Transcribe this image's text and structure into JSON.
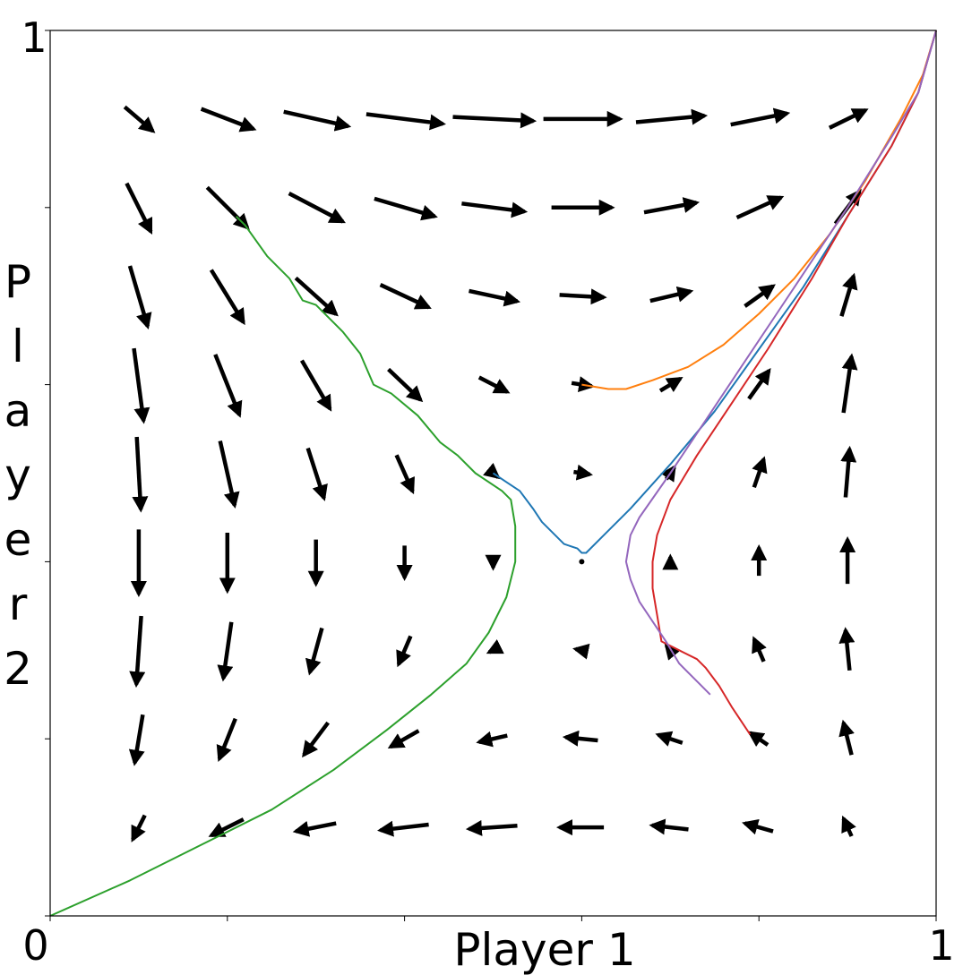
{
  "chart_data": {
    "type": "quiver",
    "title": "",
    "xlabel": "Player 1",
    "ylabel": "Player 2",
    "xlim": [
      0,
      1
    ],
    "ylim": [
      0,
      1
    ],
    "x_tick_labels": [
      "0",
      "1"
    ],
    "y_tick_labels": [
      "1"
    ],
    "x_ticks": [
      0,
      0.2,
      0.4,
      0.6,
      0.8,
      1
    ],
    "y_ticks": [
      0,
      0.2,
      0.4,
      0.6,
      0.8,
      1
    ],
    "grid": false,
    "legend": "none",
    "equilibrium_point": [
      0.6,
      0.4
    ],
    "vector_field": {
      "grid_values": [
        0.1,
        0.2,
        0.3,
        0.4,
        0.5,
        0.6,
        0.7,
        0.8,
        0.9
      ],
      "vectors_note": "direction (dx, dy) per grid point; rows listed top (y=0.9) to bottom (y=0.1), columns left (x=0.1) to right (x=0.9)",
      "rows": [
        {
          "y": 0.9,
          "d": [
            [
              0.035,
              -0.03
            ],
            [
              0.065,
              -0.025
            ],
            [
              0.08,
              -0.018
            ],
            [
              0.095,
              -0.012
            ],
            [
              0.1,
              -0.005
            ],
            [
              0.095,
              0
            ],
            [
              0.085,
              0.008
            ],
            [
              0.07,
              0.014
            ],
            [
              0.045,
              0.022
            ]
          ]
        },
        {
          "y": 0.8,
          "d": [
            [
              0.03,
              -0.06
            ],
            [
              0.05,
              -0.05
            ],
            [
              0.067,
              -0.035
            ],
            [
              0.075,
              -0.022
            ],
            [
              0.078,
              -0.01
            ],
            [
              0.075,
              0
            ],
            [
              0.065,
              0.012
            ],
            [
              0.055,
              0.025
            ],
            [
              0.03,
              0.04
            ]
          ]
        },
        {
          "y": 0.7,
          "d": [
            [
              0.022,
              -0.075
            ],
            [
              0.04,
              -0.065
            ],
            [
              0.05,
              -0.045
            ],
            [
              0.06,
              -0.028
            ],
            [
              0.06,
              -0.013
            ],
            [
              0.055,
              -0.003
            ],
            [
              0.05,
              0.012
            ],
            [
              0.035,
              0.025
            ],
            [
              0.015,
              0.05
            ]
          ]
        },
        {
          "y": 0.6,
          "d": [
            [
              0.012,
              -0.09
            ],
            [
              0.03,
              -0.075
            ],
            [
              0.035,
              -0.06
            ],
            [
              0.04,
              -0.038
            ],
            [
              0.035,
              -0.018
            ],
            [
              0.025,
              -0.004
            ],
            [
              0.025,
              0.015
            ],
            [
              0.025,
              0.035
            ],
            [
              0.01,
              0.07
            ]
          ]
        },
        {
          "y": 0.5,
          "d": [
            [
              0.005,
              -0.09
            ],
            [
              0.018,
              -0.08
            ],
            [
              0.02,
              -0.062
            ],
            [
              0.02,
              -0.045
            ],
            [
              0.012,
              -0.01
            ],
            [
              0.02,
              -0.003
            ],
            [
              0.01,
              0.015
            ],
            [
              0.012,
              0.035
            ],
            [
              0.005,
              0.06
            ]
          ]
        },
        {
          "y": 0.4,
          "d": [
            [
              0,
              -0.08
            ],
            [
              0,
              -0.072
            ],
            [
              0,
              -0.055
            ],
            [
              0,
              -0.04
            ],
            [
              0,
              -0.015
            ],
            [
              0,
              0
            ],
            [
              0,
              0.012
            ],
            [
              0,
              0.035
            ],
            [
              0,
              0.055
            ]
          ]
        },
        {
          "y": 0.3,
          "d": [
            [
              -0.006,
              -0.085
            ],
            [
              -0.01,
              -0.07
            ],
            [
              -0.015,
              -0.055
            ],
            [
              -0.015,
              -0.035
            ],
            [
              -0.01,
              -0.005
            ],
            [
              -0.015,
              0.003
            ],
            [
              -0.01,
              0.012
            ],
            [
              -0.012,
              0.028
            ],
            [
              -0.005,
              0.05
            ]
          ]
        },
        {
          "y": 0.2,
          "d": [
            [
              -0.01,
              -0.06
            ],
            [
              -0.02,
              -0.05
            ],
            [
              -0.03,
              -0.04
            ],
            [
              -0.035,
              -0.02
            ],
            [
              -0.035,
              -0.008
            ],
            [
              -0.04,
              0.004
            ],
            [
              -0.03,
              0.01
            ],
            [
              -0.022,
              0.015
            ],
            [
              -0.01,
              0.04
            ]
          ]
        },
        {
          "y": 0.1,
          "d": [
            [
              -0.015,
              -0.03
            ],
            [
              -0.04,
              -0.02
            ],
            [
              -0.05,
              -0.01
            ],
            [
              -0.06,
              -0.007
            ],
            [
              -0.06,
              -0.004
            ],
            [
              -0.055,
              0
            ],
            [
              -0.045,
              0.005
            ],
            [
              -0.035,
              0.01
            ],
            [
              -0.01,
              0.022
            ]
          ]
        }
      ]
    },
    "series": [
      {
        "color": "#2ca02c",
        "points": [
          [
            0.21,
            0.79
          ],
          [
            0.22,
            0.78
          ],
          [
            0.245,
            0.745
          ],
          [
            0.27,
            0.72
          ],
          [
            0.285,
            0.695
          ],
          [
            0.3,
            0.69
          ],
          [
            0.33,
            0.66
          ],
          [
            0.35,
            0.635
          ],
          [
            0.365,
            0.6
          ],
          [
            0.385,
            0.59
          ],
          [
            0.415,
            0.565
          ],
          [
            0.44,
            0.535
          ],
          [
            0.46,
            0.52
          ],
          [
            0.48,
            0.5
          ],
          [
            0.51,
            0.48
          ],
          [
            0.52,
            0.47
          ],
          [
            0.525,
            0.44
          ],
          [
            0.525,
            0.4
          ],
          [
            0.515,
            0.36
          ],
          [
            0.495,
            0.32
          ],
          [
            0.47,
            0.285
          ],
          [
            0.43,
            0.25
          ],
          [
            0.38,
            0.21
          ],
          [
            0.32,
            0.165
          ],
          [
            0.25,
            0.12
          ],
          [
            0.17,
            0.08
          ],
          [
            0.09,
            0.04
          ],
          [
            0,
            0
          ]
        ]
      },
      {
        "color": "#1f77b4",
        "points": [
          [
            0.5,
            0.5
          ],
          [
            0.515,
            0.49
          ],
          [
            0.53,
            0.48
          ],
          [
            0.545,
            0.46
          ],
          [
            0.555,
            0.445
          ],
          [
            0.57,
            0.43
          ],
          [
            0.58,
            0.42
          ],
          [
            0.595,
            0.415
          ],
          [
            0.6,
            0.41
          ],
          [
            0.605,
            0.41
          ],
          [
            0.625,
            0.43
          ],
          [
            0.655,
            0.46
          ],
          [
            0.7,
            0.51
          ],
          [
            0.75,
            0.57
          ],
          [
            0.8,
            0.64
          ],
          [
            0.85,
            0.71
          ],
          [
            0.9,
            0.79
          ],
          [
            0.95,
            0.87
          ],
          [
            0.98,
            0.93
          ],
          [
            1,
            1
          ]
        ]
      },
      {
        "color": "#ff7f0e",
        "points": [
          [
            0.6,
            0.6
          ],
          [
            0.63,
            0.595
          ],
          [
            0.65,
            0.595
          ],
          [
            0.68,
            0.605
          ],
          [
            0.72,
            0.62
          ],
          [
            0.76,
            0.645
          ],
          [
            0.8,
            0.68
          ],
          [
            0.84,
            0.72
          ],
          [
            0.88,
            0.77
          ],
          [
            0.92,
            0.83
          ],
          [
            0.96,
            0.9
          ],
          [
            0.985,
            0.95
          ],
          [
            1,
            1
          ]
        ]
      },
      {
        "color": "#d62728",
        "points": [
          [
            0.79,
            0.205
          ],
          [
            0.77,
            0.235
          ],
          [
            0.755,
            0.26
          ],
          [
            0.74,
            0.28
          ],
          [
            0.73,
            0.29
          ],
          [
            0.71,
            0.3
          ],
          [
            0.69,
            0.31
          ],
          [
            0.685,
            0.34
          ],
          [
            0.68,
            0.37
          ],
          [
            0.68,
            0.4
          ],
          [
            0.685,
            0.43
          ],
          [
            0.7,
            0.47
          ],
          [
            0.73,
            0.52
          ],
          [
            0.77,
            0.58
          ],
          [
            0.81,
            0.64
          ],
          [
            0.86,
            0.72
          ],
          [
            0.9,
            0.79
          ],
          [
            0.95,
            0.87
          ],
          [
            0.98,
            0.93
          ],
          [
            1,
            1
          ]
        ]
      },
      {
        "color": "#9467bd",
        "points": [
          [
            0.745,
            0.25
          ],
          [
            0.73,
            0.265
          ],
          [
            0.71,
            0.285
          ],
          [
            0.695,
            0.31
          ],
          [
            0.665,
            0.355
          ],
          [
            0.655,
            0.38
          ],
          [
            0.65,
            0.4
          ],
          [
            0.655,
            0.43
          ],
          [
            0.665,
            0.45
          ],
          [
            0.7,
            0.5
          ],
          [
            0.74,
            0.56
          ],
          [
            0.78,
            0.62
          ],
          [
            0.82,
            0.68
          ],
          [
            0.86,
            0.74
          ],
          [
            0.9,
            0.8
          ],
          [
            0.95,
            0.88
          ],
          [
            0.98,
            0.93
          ],
          [
            1,
            1
          ]
        ]
      }
    ]
  }
}
